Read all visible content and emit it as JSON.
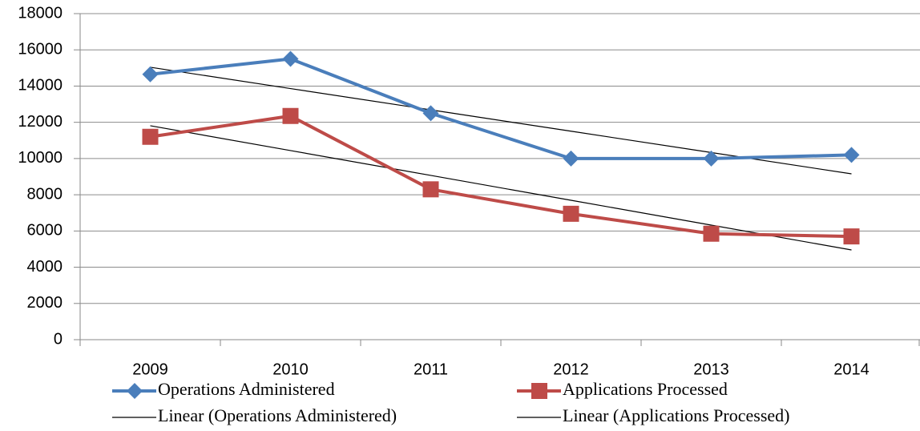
{
  "chart_data": {
    "type": "line",
    "categories": [
      "2009",
      "2010",
      "2011",
      "2012",
      "2013",
      "2014"
    ],
    "series": [
      {
        "name": "Operations Administered",
        "color": "#4a7ebb",
        "marker": "diamond",
        "values": [
          14650,
          15500,
          12500,
          10000,
          10000,
          10200
        ]
      },
      {
        "name": "Applications Processed",
        "color": "#be4b48",
        "marker": "square",
        "values": [
          11200,
          12350,
          8300,
          6950,
          5850,
          5700
        ]
      },
      {
        "name": "Linear (Operations Administered)",
        "color": "#000000",
        "values": [
          15040,
          13863,
          12686,
          11509,
          10332,
          9155
        ]
      },
      {
        "name": "Linear (Applications Processed)",
        "color": "#000000",
        "values": [
          11810,
          10439,
          9068,
          7696,
          6325,
          4954
        ]
      }
    ],
    "ylim": [
      0,
      18000
    ],
    "yticks": [
      0,
      2000,
      4000,
      6000,
      8000,
      10000,
      12000,
      14000,
      16000,
      18000
    ],
    "grid": true
  }
}
